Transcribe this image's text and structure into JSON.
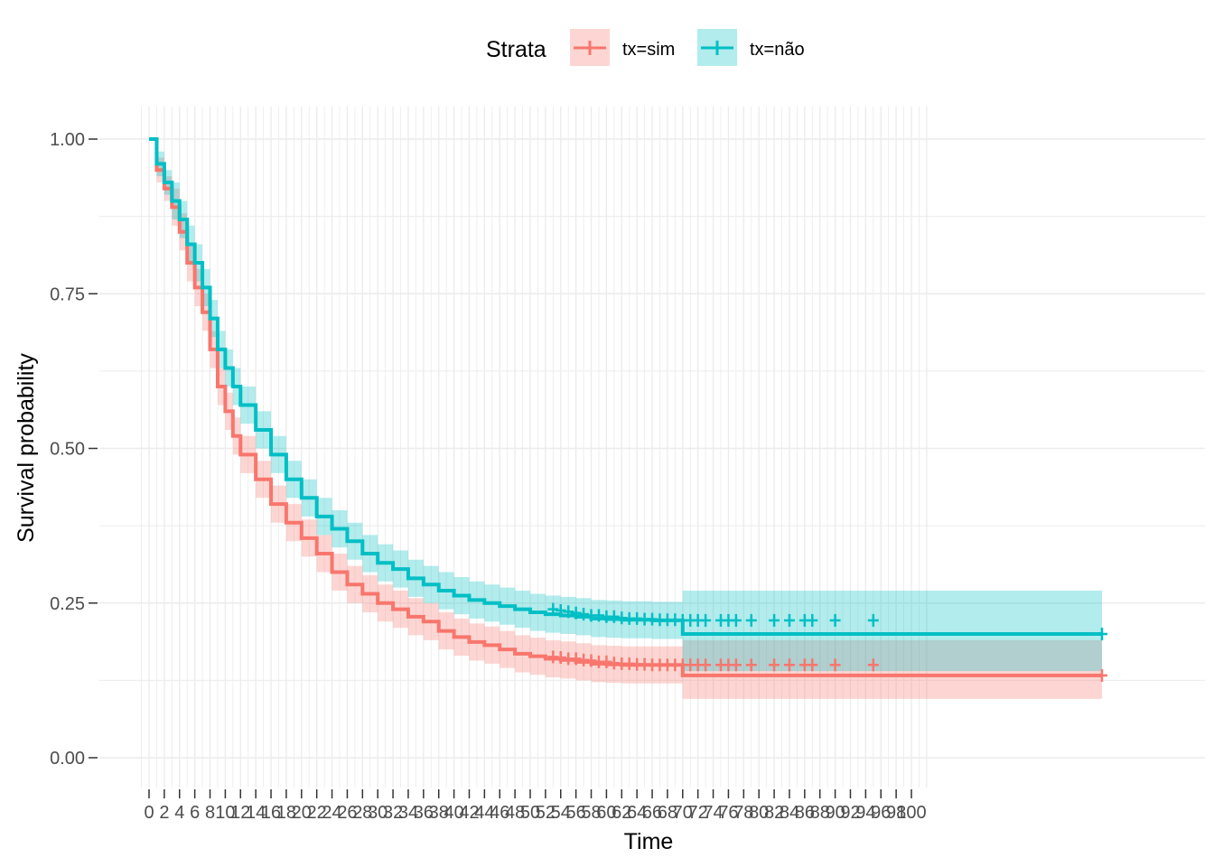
{
  "chart_data": {
    "type": "line",
    "subtype": "kaplan-meier survival curve with confidence bands",
    "xlabel": "Time",
    "ylabel": "Survival probability",
    "xlim": [
      0,
      100
    ],
    "ylim": [
      0,
      1
    ],
    "grid": true,
    "legend_position": "top",
    "legend_title": "Strata",
    "x_tick_labels": [
      "0",
      "2",
      "4",
      "6",
      "8",
      "10",
      "12",
      "14",
      "16",
      "18",
      "20",
      "22",
      "24",
      "26",
      "28",
      "30",
      "32",
      "34",
      "36",
      "38",
      "40",
      "42",
      "44",
      "46",
      "48",
      "50",
      "52",
      "54",
      "56",
      "58",
      "60",
      "62",
      "64",
      "66",
      "68",
      "70",
      "72",
      "74",
      "76",
      "78",
      "80",
      "82",
      "84",
      "86",
      "88",
      "90",
      "92",
      "94",
      "96",
      "98",
      "100"
    ],
    "y_ticks": [
      0,
      0.25,
      0.5,
      0.75,
      1
    ],
    "y_tick_labels": [
      "0.00",
      "0.25",
      "0.50",
      "0.75",
      "1.00"
    ],
    "series": [
      {
        "name": "tx=sim",
        "color": "#F8766D",
        "fill": "#F8766D",
        "x": [
          0,
          1,
          2,
          3,
          4,
          5,
          6,
          7,
          8,
          9,
          10,
          11,
          12,
          14,
          16,
          18,
          20,
          22,
          24,
          26,
          28,
          30,
          32,
          34,
          36,
          38,
          40,
          42,
          44,
          46,
          48,
          50,
          52,
          54,
          56,
          58,
          60,
          62,
          64,
          66,
          68,
          70,
          72,
          74,
          125
        ],
        "y": [
          1.0,
          0.95,
          0.92,
          0.89,
          0.85,
          0.8,
          0.76,
          0.72,
          0.66,
          0.6,
          0.56,
          0.52,
          0.49,
          0.45,
          0.41,
          0.38,
          0.355,
          0.33,
          0.3,
          0.28,
          0.265,
          0.25,
          0.24,
          0.228,
          0.22,
          0.205,
          0.195,
          0.187,
          0.182,
          0.175,
          0.168,
          0.164,
          0.16,
          0.158,
          0.155,
          0.152,
          0.151,
          0.15,
          0.15,
          0.15,
          0.15,
          0.133,
          0.133,
          0.133,
          0.133
        ],
        "lower": [
          1.0,
          0.93,
          0.9,
          0.86,
          0.82,
          0.77,
          0.73,
          0.69,
          0.63,
          0.57,
          0.53,
          0.49,
          0.46,
          0.42,
          0.38,
          0.35,
          0.325,
          0.3,
          0.27,
          0.25,
          0.235,
          0.22,
          0.21,
          0.198,
          0.19,
          0.175,
          0.165,
          0.157,
          0.152,
          0.145,
          0.138,
          0.134,
          0.13,
          0.128,
          0.125,
          0.122,
          0.121,
          0.12,
          0.12,
          0.12,
          0.12,
          0.095,
          0.095,
          0.095,
          0.095
        ],
        "upper": [
          1.0,
          0.97,
          0.94,
          0.92,
          0.88,
          0.83,
          0.79,
          0.75,
          0.69,
          0.63,
          0.59,
          0.55,
          0.52,
          0.48,
          0.44,
          0.41,
          0.385,
          0.36,
          0.33,
          0.31,
          0.295,
          0.28,
          0.27,
          0.258,
          0.25,
          0.235,
          0.225,
          0.217,
          0.212,
          0.205,
          0.198,
          0.194,
          0.19,
          0.188,
          0.185,
          0.182,
          0.181,
          0.18,
          0.18,
          0.18,
          0.18,
          0.19,
          0.19,
          0.19,
          0.19
        ],
        "censor_x": [
          53,
          54,
          55,
          56,
          57,
          58,
          59,
          60,
          61,
          62,
          63,
          64,
          65,
          66,
          67,
          68,
          69,
          70,
          71,
          72,
          73,
          75,
          76,
          77,
          79,
          82,
          84,
          86,
          87,
          90,
          95,
          125
        ],
        "censor_y": [
          0.163,
          0.162,
          0.16,
          0.16,
          0.158,
          0.157,
          0.155,
          0.155,
          0.153,
          0.152,
          0.152,
          0.151,
          0.151,
          0.15,
          0.15,
          0.15,
          0.15,
          0.15,
          0.15,
          0.15,
          0.15,
          0.15,
          0.15,
          0.15,
          0.15,
          0.15,
          0.15,
          0.15,
          0.15,
          0.15,
          0.15,
          0.133
        ]
      },
      {
        "name": "tx=não",
        "color": "#00BFC4",
        "fill": "#00BFC4",
        "x": [
          0,
          1,
          2,
          3,
          4,
          5,
          6,
          7,
          8,
          9,
          10,
          11,
          12,
          14,
          16,
          18,
          20,
          22,
          24,
          26,
          28,
          30,
          32,
          34,
          36,
          38,
          40,
          42,
          44,
          46,
          48,
          50,
          52,
          54,
          56,
          58,
          60,
          62,
          64,
          66,
          68,
          70,
          72,
          74,
          125
        ],
        "y": [
          1.0,
          0.96,
          0.93,
          0.9,
          0.87,
          0.83,
          0.8,
          0.76,
          0.71,
          0.66,
          0.63,
          0.6,
          0.57,
          0.53,
          0.49,
          0.45,
          0.42,
          0.39,
          0.37,
          0.35,
          0.33,
          0.315,
          0.305,
          0.29,
          0.28,
          0.27,
          0.262,
          0.255,
          0.25,
          0.245,
          0.24,
          0.235,
          0.232,
          0.23,
          0.228,
          0.225,
          0.224,
          0.223,
          0.223,
          0.222,
          0.222,
          0.2,
          0.2,
          0.2,
          0.2
        ],
        "lower": [
          1.0,
          0.94,
          0.91,
          0.87,
          0.84,
          0.8,
          0.77,
          0.73,
          0.68,
          0.63,
          0.6,
          0.57,
          0.54,
          0.5,
          0.46,
          0.42,
          0.39,
          0.36,
          0.34,
          0.32,
          0.3,
          0.285,
          0.275,
          0.26,
          0.25,
          0.24,
          0.232,
          0.225,
          0.22,
          0.215,
          0.21,
          0.205,
          0.202,
          0.2,
          0.198,
          0.195,
          0.194,
          0.193,
          0.193,
          0.192,
          0.192,
          0.14,
          0.14,
          0.14,
          0.14
        ],
        "upper": [
          1.0,
          0.98,
          0.95,
          0.93,
          0.9,
          0.86,
          0.83,
          0.79,
          0.74,
          0.69,
          0.66,
          0.63,
          0.6,
          0.56,
          0.52,
          0.48,
          0.45,
          0.42,
          0.4,
          0.38,
          0.36,
          0.345,
          0.335,
          0.32,
          0.31,
          0.3,
          0.292,
          0.285,
          0.28,
          0.275,
          0.27,
          0.265,
          0.262,
          0.26,
          0.258,
          0.255,
          0.254,
          0.253,
          0.253,
          0.252,
          0.252,
          0.27,
          0.27,
          0.27,
          0.27
        ],
        "censor_x": [
          53,
          54,
          55,
          56,
          57,
          58,
          59,
          60,
          61,
          62,
          63,
          64,
          65,
          66,
          67,
          68,
          69,
          70,
          71,
          72,
          73,
          75,
          76,
          77,
          79,
          82,
          84,
          86,
          87,
          90,
          95,
          125
        ],
        "censor_y": [
          0.24,
          0.238,
          0.236,
          0.234,
          0.232,
          0.23,
          0.23,
          0.228,
          0.228,
          0.226,
          0.225,
          0.225,
          0.224,
          0.224,
          0.223,
          0.223,
          0.223,
          0.222,
          0.222,
          0.222,
          0.222,
          0.222,
          0.222,
          0.222,
          0.222,
          0.222,
          0.222,
          0.222,
          0.222,
          0.222,
          0.222,
          0.2
        ]
      }
    ]
  }
}
